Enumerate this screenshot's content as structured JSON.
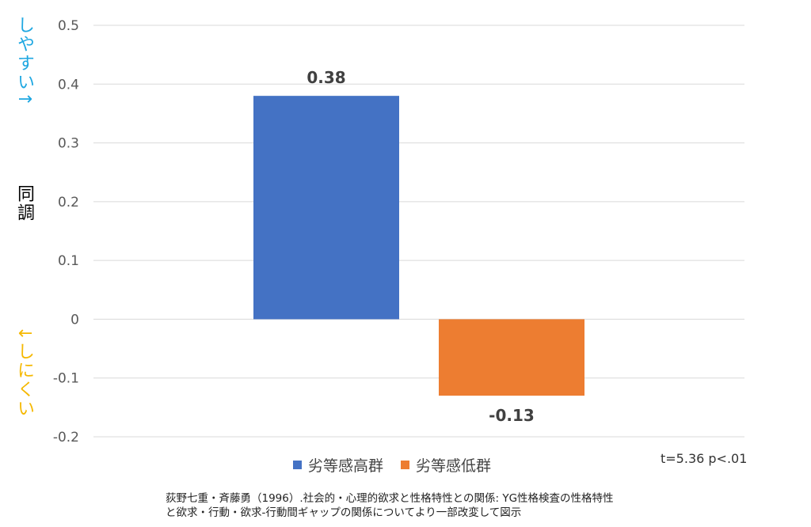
{
  "chart_data": {
    "type": "bar",
    "categories": [
      "劣等感高群",
      "劣等感低群"
    ],
    "values": [
      0.38,
      -0.13
    ],
    "data_labels": [
      "0.38",
      "-0.13"
    ],
    "colors": [
      "#4472C4",
      "#ED7D31"
    ],
    "ylim": [
      -0.2,
      0.5
    ],
    "yticks": [
      0.5,
      0.4,
      0.3,
      0.2,
      0.1,
      0,
      -0.1,
      -0.2
    ],
    "ytick_labels": [
      "0.5",
      "0.4",
      "0.3",
      "0.2",
      "0.1",
      "0",
      "-0.1",
      "-0.2"
    ],
    "grid": true,
    "legend_position": "bottom",
    "legend": [
      "劣等感高群",
      "劣等感低群"
    ]
  },
  "ylabel": {
    "top": "しやすい↑",
    "middle": "同調",
    "bottom": "↓しにくい",
    "top_color": "#1EA7E1",
    "middle_color": "#000000",
    "bottom_color": "#F5B800"
  },
  "stat_note": "t=5.36 p<.01",
  "source": {
    "line1": "荻野七重・斉藤勇（1996）.社会的・心理的欲求と性格特性との関係: YG性格検査の性格特性",
    "line2": "と欲求・行動・欲求-行動間ギャップの関係についてより一部改変して図示"
  }
}
